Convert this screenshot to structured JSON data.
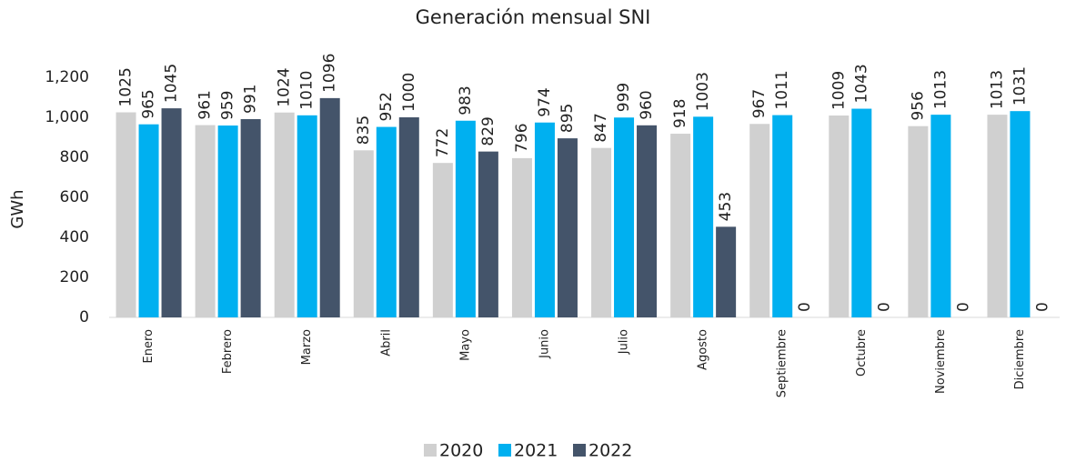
{
  "chart_data": {
    "type": "bar",
    "title": "Generación mensual SNI",
    "y_label": "GWh",
    "categories": [
      "Enero",
      "Febrero",
      "Marzo",
      "Abril",
      "Mayo",
      "Junio",
      "Julio",
      "Agosto",
      "Septiembre",
      "Octubre",
      "Noviembre",
      "Diciembre"
    ],
    "series": [
      {
        "name": "2020",
        "color": "#d0d0d0",
        "values": [
          1025,
          961,
          1024,
          835,
          772,
          796,
          847,
          918,
          967,
          1009,
          956,
          1013
        ]
      },
      {
        "name": "2021",
        "color": "#00b0f0",
        "values": [
          965,
          959,
          1010,
          952,
          983,
          974,
          999,
          1003,
          1011,
          1043,
          1013,
          1031
        ]
      },
      {
        "name": "2022",
        "color": "#44546a",
        "values": [
          1045,
          991,
          1096,
          1000,
          829,
          895,
          960,
          453,
          0,
          0,
          0,
          0
        ]
      }
    ],
    "ylim": [
      0,
      1200
    ],
    "yticks": [
      0,
      200,
      400,
      600,
      800,
      {
        "value": 1000,
        "label": "1,000"
      },
      {
        "value": 1200,
        "label": "1,200"
      }
    ],
    "grid": false,
    "legend": "bottom"
  }
}
